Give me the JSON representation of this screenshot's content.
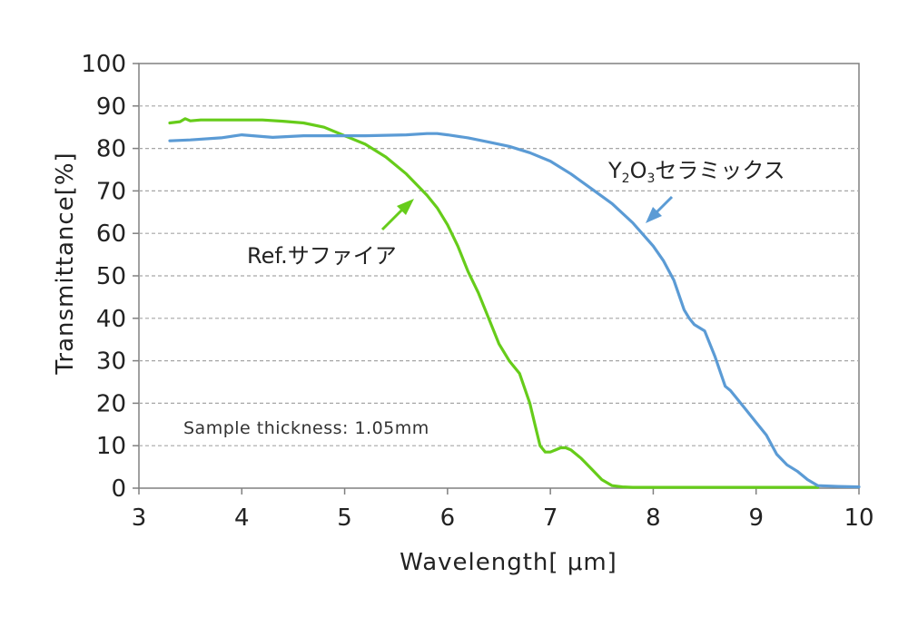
{
  "chart_data": {
    "type": "line",
    "title": "",
    "xlabel": "Wavelength[ μm]",
    "ylabel": "Transmittance[%]",
    "xlim": [
      3,
      10
    ],
    "ylim": [
      0,
      100
    ],
    "xticks": [
      "3",
      "4",
      "5",
      "6",
      "7",
      "8",
      "9",
      "10"
    ],
    "yticks": [
      "0",
      "10",
      "20",
      "30",
      "40",
      "50",
      "60",
      "70",
      "80",
      "90",
      "100"
    ],
    "grid": "horizontal-dashed",
    "legend": "none",
    "note": "Sample thickness: 1.05mm",
    "series": [
      {
        "name": "Ref.サファイア",
        "color": "#66cc1a",
        "x": [
          3.3,
          3.4,
          3.45,
          3.5,
          3.6,
          4.0,
          4.2,
          4.4,
          4.6,
          4.8,
          5.0,
          5.2,
          5.4,
          5.6,
          5.8,
          5.9,
          6.0,
          6.1,
          6.2,
          6.3,
          6.4,
          6.5,
          6.6,
          6.7,
          6.8,
          6.85,
          6.9,
          6.95,
          7.0,
          7.05,
          7.1,
          7.15,
          7.2,
          7.3,
          7.4,
          7.5,
          7.6,
          7.7,
          7.8,
          8.0,
          8.5,
          9.0,
          9.6
        ],
        "y": [
          86,
          86.3,
          87,
          86.5,
          86.7,
          86.7,
          86.7,
          86.4,
          86,
          85,
          83,
          81,
          78,
          74,
          69,
          66,
          62,
          57,
          51,
          46,
          40,
          34,
          30,
          27,
          20,
          15,
          10,
          8.5,
          8.5,
          9,
          9.5,
          9.5,
          9,
          7,
          4.5,
          2,
          0.6,
          0.3,
          0.2,
          0.2,
          0.2,
          0.2,
          0.2
        ]
      },
      {
        "name": "Y₂O₃セラミックス",
        "color": "#5b9bd5",
        "x": [
          3.3,
          3.5,
          3.8,
          4.0,
          4.3,
          4.6,
          4.9,
          5.2,
          5.6,
          5.8,
          5.9,
          6.0,
          6.2,
          6.4,
          6.6,
          6.8,
          7.0,
          7.2,
          7.4,
          7.6,
          7.8,
          8.0,
          8.1,
          8.2,
          8.3,
          8.35,
          8.4,
          8.5,
          8.6,
          8.7,
          8.75,
          8.8,
          8.9,
          9.0,
          9.1,
          9.2,
          9.3,
          9.4,
          9.5,
          9.6,
          9.8,
          10.0
        ],
        "y": [
          81.8,
          82,
          82.5,
          83.2,
          82.6,
          83,
          83,
          83,
          83.2,
          83.5,
          83.5,
          83.2,
          82.5,
          81.5,
          80.5,
          79,
          77,
          74,
          70.5,
          67,
          62.5,
          57,
          53.5,
          49,
          42,
          40,
          38.5,
          37,
          31,
          24,
          23,
          21.5,
          18.5,
          15.5,
          12.5,
          8,
          5.5,
          4,
          2,
          0.6,
          0.4,
          0.3
        ]
      }
    ],
    "annotations": [
      {
        "id": "sapphire",
        "label": "Ref.サファイア"
      },
      {
        "id": "y2o3",
        "label_base": "Y",
        "label_sub1": "2",
        "label_mid": "O",
        "label_sub2": "3",
        "label_tail": "セラミックス"
      }
    ]
  }
}
